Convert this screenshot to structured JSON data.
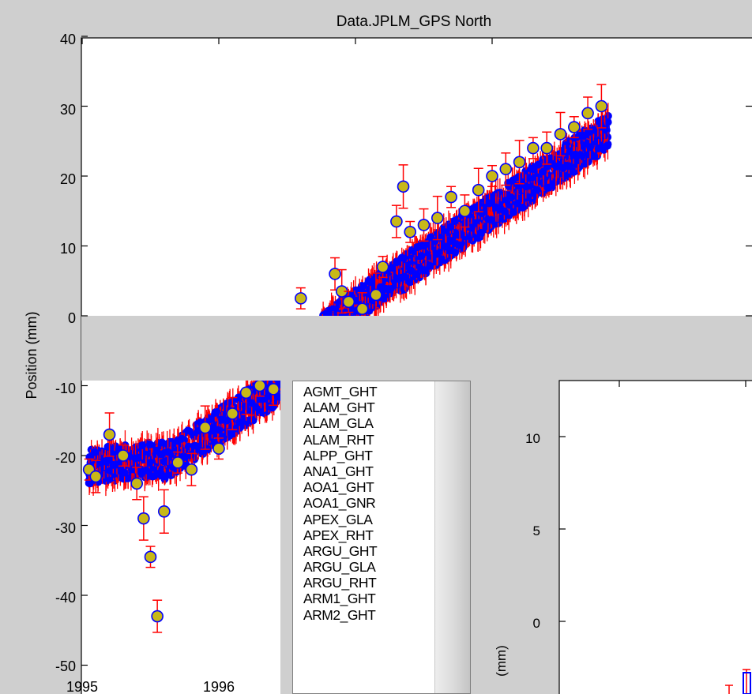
{
  "window": {
    "title": "Data.JPLM_GPS North"
  },
  "colors": {
    "background": "#cfcfcf",
    "marker_fill": "#c8b818",
    "marker_edge": "#0000ff",
    "error_bar": "#ff0000",
    "cloud": "#0000ff"
  },
  "main_plot": {
    "ylabel": "Position (mm)",
    "y_ticks": [
      "40",
      "30",
      "20",
      "10",
      "0",
      "-10",
      "-20",
      "-30",
      "-40",
      "-50"
    ],
    "x_ticks": [
      "1995",
      "1996"
    ]
  },
  "inset_plot": {
    "ylabel": "(mm)",
    "y_ticks": [
      "10",
      "5",
      "0"
    ]
  },
  "chart_data": {
    "type": "scatter",
    "title": "Data.JPLM_GPS North",
    "xlabel": "",
    "ylabel": "Position (mm)",
    "ylim": [
      -50,
      40
    ],
    "xlim": [
      1995,
      1998.9
    ],
    "grid": false,
    "legend": "none",
    "marker": "circle with vertical error bars",
    "series": [
      {
        "x": [
          1995.05,
          1995.1,
          1995.2,
          1995.3,
          1995.4,
          1995.45,
          1995.5,
          1995.55,
          1995.6,
          1995.7,
          1995.8,
          1995.9,
          1996.0,
          1996.1,
          1996.2,
          1996.3,
          1996.4
        ],
        "y": [
          -22,
          -23,
          -17,
          -20,
          -24,
          -29,
          -34.5,
          -43,
          -28,
          -21,
          -22,
          -16,
          -19,
          -14,
          -11,
          -10,
          -10.5
        ]
      },
      {
        "x": [
          1996.6,
          1996.85,
          1996.9,
          1996.95,
          1997.05,
          1997.15,
          1997.2,
          1997.3,
          1997.35,
          1997.4,
          1997.5,
          1997.6,
          1997.7,
          1997.8,
          1997.9,
          1998.0,
          1998.1,
          1998.2,
          1998.3,
          1998.4,
          1998.5,
          1998.6,
          1998.7,
          1998.8
        ],
        "y": [
          2.5,
          6,
          3.5,
          2,
          1,
          3,
          7,
          13.5,
          18.5,
          12,
          13,
          14,
          17,
          15,
          18,
          20,
          21,
          22,
          24,
          24,
          26,
          27,
          29,
          30
        ]
      }
    ]
  },
  "station_list": {
    "items": [
      "AGMT_GHT",
      "ALAM_GHT",
      "ALAM_GLA",
      "ALAM_RHT",
      "ALPP_GHT",
      "ANA1_GHT",
      "AOA1_GHT",
      "AOA1_GNR",
      "APEX_GLA",
      "APEX_RHT",
      "ARGU_GHT",
      "ARGU_GLA",
      "ARGU_RHT",
      "ARM1_GHT",
      "ARM2_GHT"
    ]
  }
}
